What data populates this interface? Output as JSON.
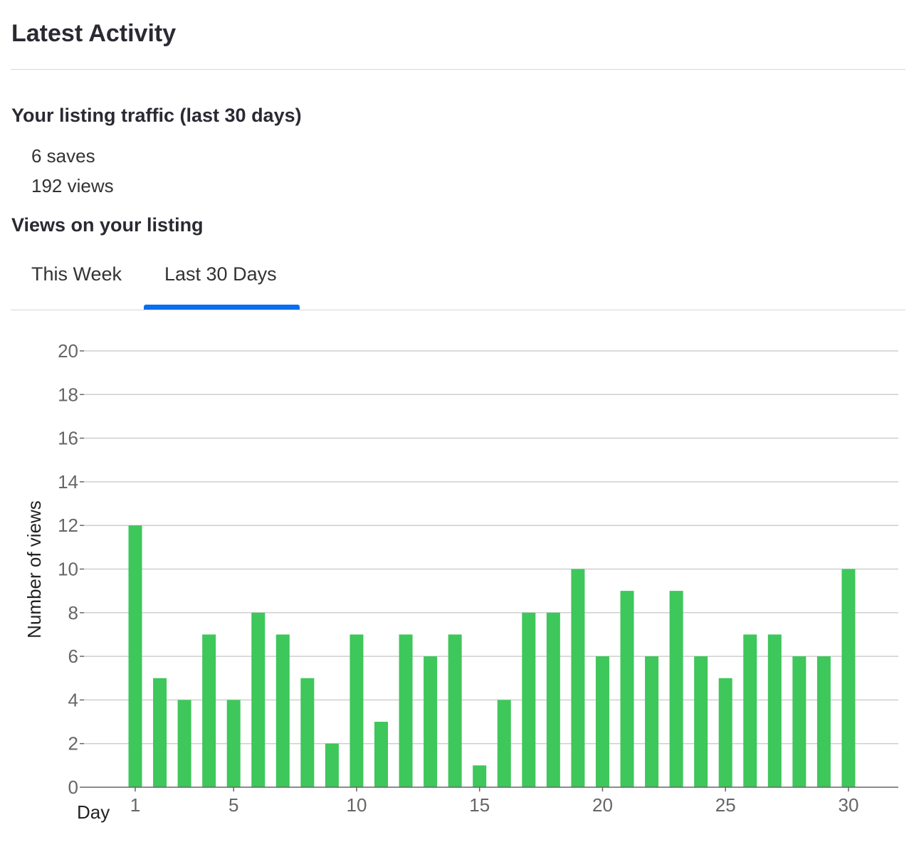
{
  "header": {
    "title": "Latest Activity"
  },
  "traffic": {
    "heading": "Your listing traffic (last 30 days)",
    "saves": "6 saves",
    "views": "192 views"
  },
  "views_section": {
    "heading": "Views on your listing",
    "tabs": [
      {
        "label": "This Week",
        "active": false
      },
      {
        "label": "Last 30 Days",
        "active": true
      }
    ],
    "accent_color": "#0a6ef0"
  },
  "chart_data": {
    "type": "bar",
    "x": [
      1,
      2,
      3,
      4,
      5,
      6,
      7,
      8,
      9,
      10,
      11,
      12,
      13,
      14,
      15,
      16,
      17,
      18,
      19,
      20,
      21,
      22,
      23,
      24,
      25,
      26,
      27,
      28,
      29,
      30
    ],
    "values": [
      12,
      5,
      4,
      7,
      4,
      8,
      7,
      5,
      2,
      7,
      3,
      7,
      6,
      7,
      1,
      4,
      8,
      8,
      10,
      6,
      9,
      6,
      9,
      6,
      5,
      7,
      7,
      6,
      6,
      10
    ],
    "xlabel": "Day",
    "ylabel": "Number of views",
    "ylim": [
      0,
      20
    ],
    "yticks": [
      0,
      2,
      4,
      6,
      8,
      10,
      12,
      14,
      16,
      18,
      20
    ],
    "xticks": [
      1,
      5,
      10,
      15,
      20,
      25,
      30
    ],
    "bar_color": "#3ec75a",
    "grid": true
  }
}
